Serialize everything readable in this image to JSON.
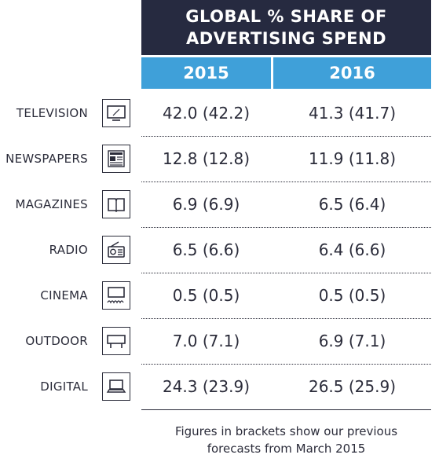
{
  "chart_data": {
    "type": "table",
    "title_lines": [
      "GLOBAL % SHARE OF",
      "ADVERTISING SPEND"
    ],
    "columns": [
      "2015",
      "2016"
    ],
    "rows": [
      {
        "label": "TELEVISION",
        "icon": "television-icon",
        "values": [
          "42.0 (42.2)",
          "41.3 (41.7)"
        ]
      },
      {
        "label": "NEWSPAPERS",
        "icon": "newspaper-icon",
        "values": [
          "12.8 (12.8)",
          "11.9 (11.8)"
        ]
      },
      {
        "label": "MAGAZINES",
        "icon": "magazine-icon",
        "values": [
          "6.9 (6.9)",
          "6.5 (6.4)"
        ]
      },
      {
        "label": "RADIO",
        "icon": "radio-icon",
        "values": [
          "6.5 (6.6)",
          "6.4 (6.6)"
        ]
      },
      {
        "label": "CINEMA",
        "icon": "cinema-icon",
        "values": [
          "0.5 (0.5)",
          "0.5 (0.5)"
        ]
      },
      {
        "label": "OUTDOOR",
        "icon": "billboard-icon",
        "values": [
          "7.0 (7.1)",
          "6.9 (7.1)"
        ]
      },
      {
        "label": "DIGITAL",
        "icon": "laptop-icon",
        "values": [
          "24.3 (23.9)",
          "26.5 (25.9)"
        ]
      }
    ],
    "footnote_lines": [
      "Figures in brackets show our previous",
      "forecasts from March 2015"
    ],
    "colors": {
      "title_bg": "#262a40",
      "header_bg": "#3fa0d9",
      "text": "#2b2c3a"
    }
  }
}
